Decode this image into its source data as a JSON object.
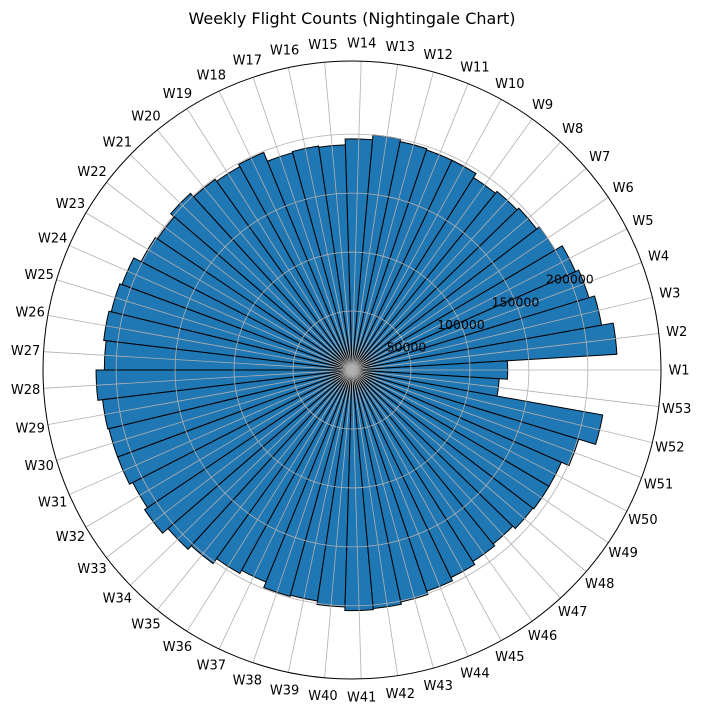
{
  "chart_data": {
    "type": "polar-bar",
    "title": "Weekly Flight Counts (Nightingale Chart)",
    "categories": [
      "W1",
      "W2",
      "W3",
      "W4",
      "W5",
      "W6",
      "W7",
      "W8",
      "W9",
      "W10",
      "W11",
      "W12",
      "W13",
      "W14",
      "W15",
      "W16",
      "W17",
      "W18",
      "W19",
      "W20",
      "W21",
      "W22",
      "W23",
      "W24",
      "W25",
      "W26",
      "W27",
      "W28",
      "W29",
      "W30",
      "W31",
      "W32",
      "W33",
      "W34",
      "W35",
      "W36",
      "W37",
      "W38",
      "W39",
      "W40",
      "W41",
      "W42",
      "W43",
      "W44",
      "W45",
      "W46",
      "W47",
      "W48",
      "W49",
      "W50",
      "W51",
      "W52",
      "W53"
    ],
    "values": [
      132000,
      225000,
      215000,
      210000,
      207000,
      200000,
      197000,
      195000,
      193000,
      197000,
      197000,
      198000,
      200000,
      196000,
      191000,
      192000,
      191000,
      199000,
      197000,
      199000,
      203000,
      199000,
      201000,
      208000,
      210000,
      212000,
      210000,
      217000,
      213000,
      212000,
      212000,
      209000,
      212000,
      206000,
      202000,
      197000,
      194000,
      199000,
      198000,
      201000,
      204000,
      203000,
      201000,
      198000,
      195000,
      192000,
      190000,
      193000,
      194000,
      194000,
      201000,
      216000,
      125000
    ],
    "radial_ticks": [
      "50000",
      "100000",
      "150000",
      "200000"
    ],
    "radial_tick_values": [
      50000,
      100000,
      150000,
      200000
    ],
    "rmax": 262000,
    "colors": {
      "bar": "#1f77b4",
      "edge": "#000000",
      "grid": "#b0b0b0"
    }
  }
}
